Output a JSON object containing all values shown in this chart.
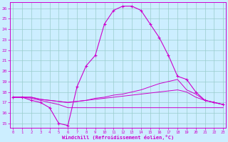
{
  "xlabel": "Windchill (Refroidissement éolien,°C)",
  "bg_color": "#cceeff",
  "grid_color": "#99cccc",
  "line_color": "#cc00cc",
  "x_ticks": [
    0,
    1,
    2,
    3,
    4,
    5,
    6,
    7,
    8,
    9,
    10,
    11,
    12,
    13,
    14,
    15,
    16,
    17,
    18,
    19,
    20,
    21,
    22,
    23
  ],
  "y_ticks": [
    15,
    16,
    17,
    18,
    19,
    20,
    21,
    22,
    23,
    24,
    25,
    26
  ],
  "xlim": [
    -0.3,
    23.3
  ],
  "ylim": [
    14.6,
    26.6
  ],
  "main_x": [
    0,
    1,
    2,
    3,
    4,
    5,
    6,
    7,
    8,
    9,
    10,
    11,
    12,
    13,
    14,
    15,
    16,
    17,
    18,
    19,
    20,
    21,
    22,
    23
  ],
  "main_y": [
    17.5,
    17.5,
    17.2,
    17.0,
    16.5,
    15.0,
    14.8,
    18.5,
    20.5,
    21.5,
    24.5,
    25.8,
    26.2,
    26.2,
    25.8,
    24.5,
    23.2,
    21.5,
    19.5,
    19.2,
    18.0,
    17.2,
    17.0,
    16.8
  ],
  "line2_x": [
    0,
    1,
    2,
    3,
    4,
    5,
    6,
    7,
    8,
    9,
    10,
    11,
    12,
    13,
    14,
    15,
    16,
    17,
    18,
    19,
    20,
    21,
    22,
    23
  ],
  "line2_y": [
    17.5,
    17.5,
    17.5,
    17.3,
    17.2,
    17.1,
    17.0,
    17.1,
    17.2,
    17.4,
    17.5,
    17.7,
    17.8,
    18.0,
    18.2,
    18.5,
    18.8,
    19.0,
    19.2,
    18.2,
    17.8,
    17.2,
    17.0,
    16.8
  ],
  "line3_x": [
    0,
    1,
    2,
    3,
    4,
    5,
    6,
    7,
    8,
    9,
    10,
    11,
    12,
    13,
    14,
    15,
    16,
    17,
    18,
    19,
    20,
    21,
    22,
    23
  ],
  "line3_y": [
    17.5,
    17.5,
    17.5,
    17.3,
    17.2,
    17.1,
    17.0,
    17.1,
    17.2,
    17.3,
    17.4,
    17.5,
    17.6,
    17.7,
    17.8,
    17.9,
    18.0,
    18.1,
    18.2,
    18.0,
    17.5,
    17.2,
    17.0,
    16.8
  ],
  "line4_x": [
    0,
    1,
    2,
    3,
    4,
    5,
    6,
    7,
    8,
    9,
    10,
    11,
    12,
    13,
    14,
    15,
    16,
    17,
    18,
    19,
    20,
    21,
    22,
    23
  ],
  "line4_y": [
    17.5,
    17.5,
    17.4,
    17.2,
    17.0,
    16.8,
    16.5,
    16.5,
    16.5,
    16.5,
    16.5,
    16.5,
    16.5,
    16.5,
    16.5,
    16.5,
    16.5,
    16.5,
    16.5,
    16.5,
    16.5,
    16.5,
    16.5,
    16.5
  ]
}
